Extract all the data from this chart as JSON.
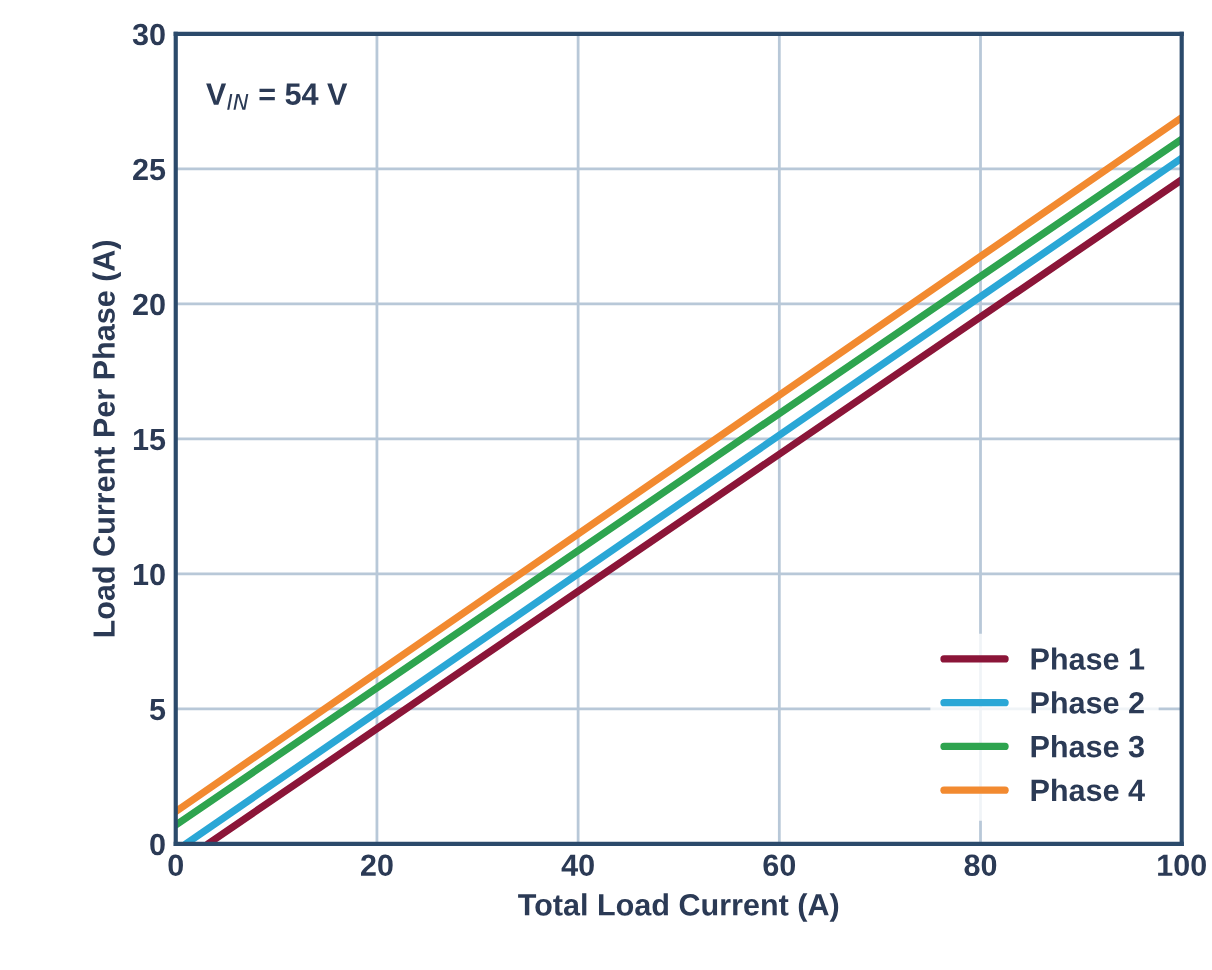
{
  "chart_data": {
    "type": "line",
    "xlabel": "Total Load Current (A)",
    "ylabel": "Load Current Per Phase (A)",
    "annotations": [
      "V$_{IN}$ = 54 V"
    ],
    "series": [
      {
        "name": "Phase 1",
        "color": "#8b1538",
        "x": [
          3.2,
          100
        ],
        "values": [
          0,
          24.6
        ]
      },
      {
        "name": "Phase 2",
        "color": "#2aa7d6",
        "x": [
          1,
          100
        ],
        "values": [
          0,
          25.4
        ]
      },
      {
        "name": "Phase 3",
        "color": "#2ea44f",
        "x": [
          0,
          100
        ],
        "values": [
          0.7,
          26.1
        ]
      },
      {
        "name": "Phase 4",
        "color": "#f28a30",
        "x": [
          0,
          100
        ],
        "values": [
          1.2,
          26.9
        ]
      }
    ],
    "xlim": [
      0,
      100
    ],
    "xticks": [
      0,
      20,
      40,
      60,
      80,
      100
    ],
    "ylim": [
      0,
      30
    ],
    "yticks": [
      0,
      5,
      10,
      15,
      20,
      25,
      30
    ],
    "grid": true,
    "legend": "bottom right",
    "line_style": "solid",
    "marker": "none"
  }
}
